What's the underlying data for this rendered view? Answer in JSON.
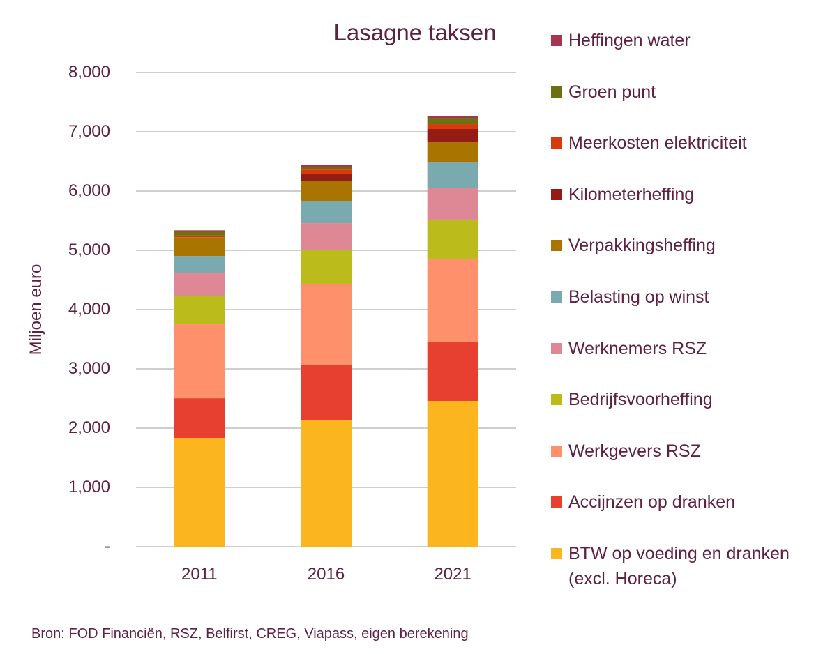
{
  "chart_data": {
    "type": "bar",
    "stacked": true,
    "title": "Lasagne taksen",
    "xlabel": "",
    "ylabel": "Miljoen euro",
    "ylim": [
      0,
      8000
    ],
    "yticks": [
      {
        "v": 0,
        "label": "-"
      },
      {
        "v": 1000,
        "label": "1,000"
      },
      {
        "v": 2000,
        "label": "2,000"
      },
      {
        "v": 3000,
        "label": "3,000"
      },
      {
        "v": 4000,
        "label": "4,000"
      },
      {
        "v": 5000,
        "label": "5,000"
      },
      {
        "v": 6000,
        "label": "6,000"
      },
      {
        "v": 7000,
        "label": "7,000"
      },
      {
        "v": 8000,
        "label": "8,000"
      }
    ],
    "grid": true,
    "legend": "right",
    "categories": [
      "2011",
      "2016",
      "2021"
    ],
    "series": [
      {
        "name": "BTW op voeding en dranken (excl. Horeca)",
        "color": "#fbb51f",
        "values": [
          1835,
          2141,
          2459
        ]
      },
      {
        "name": "Accijnzen op dranken",
        "color": "#e84030",
        "values": [
          670,
          918,
          1000
        ]
      },
      {
        "name": "Werkgevers RSZ",
        "color": "#fe916b",
        "values": [
          1247,
          1376,
          1400
        ]
      },
      {
        "name": "Bedrijfsvoorheffing",
        "color": "#bbbb1c",
        "values": [
          482,
          576,
          659
        ]
      },
      {
        "name": "Werknemers RSZ",
        "color": "#df8895",
        "values": [
          388,
          447,
          529
        ]
      },
      {
        "name": "Belasting op winst",
        "color": "#7ba9b0",
        "values": [
          282,
          376,
          435
        ]
      },
      {
        "name": "Verpakkingsheffing",
        "color": "#a97500",
        "values": [
          318,
          341,
          341
        ]
      },
      {
        "name": "Kilometerheffing",
        "color": "#951c14",
        "values": [
          0,
          118,
          224
        ]
      },
      {
        "name": "Meerkosten elektriciteit",
        "color": "#d83a0d",
        "values": [
          30,
          70,
          82
        ]
      },
      {
        "name": "Groen punt",
        "color": "#6b7112",
        "values": [
          60,
          47,
          106
        ]
      },
      {
        "name": "Heffingen water",
        "color": "#a8354f",
        "values": [
          25,
          35,
          35
        ]
      }
    ],
    "source": "Bron: FOD Financiën, RSZ, Belfirst, CREG, Viapass, eigen berekening"
  }
}
